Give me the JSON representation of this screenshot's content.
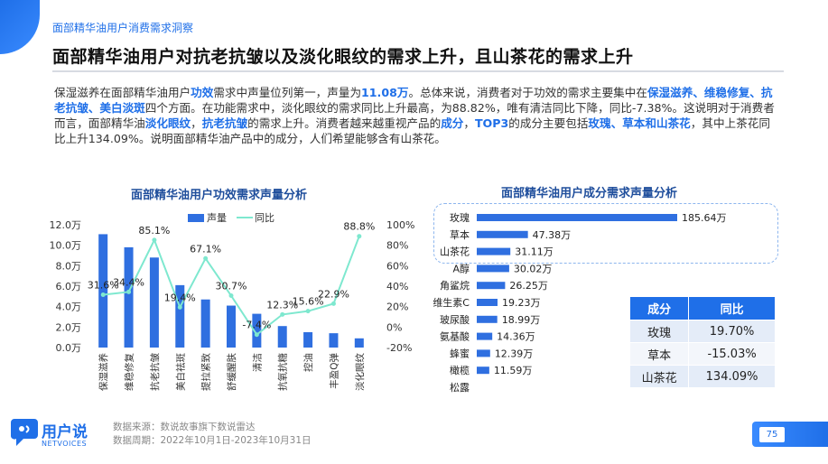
{
  "section_label": "面部精华油用户消费需求洞察",
  "headline": "面部精华油用户对抗老抗皱以及淡化眼纹的需求上升，且山茶花的需求上升",
  "summary": [
    {
      "t": "保湿滋养在面部精华油用户",
      "h": false
    },
    {
      "t": "功效",
      "h": true
    },
    {
      "t": "需求中声量位列第一，声量为",
      "h": false
    },
    {
      "t": "11.08万",
      "h": true
    },
    {
      "t": "。总体来说，消费者对于功效的需求主要集中在",
      "h": false
    },
    {
      "t": "保湿滋养、维稳修复、抗老抗皱、美白淡斑",
      "h": true
    },
    {
      "t": "四个方面。在功能需求中，淡化眼纹的需求同比上升最高，为88.82%，唯有清洁同比下降，同比-7.38%。这说明对于消费者而言，面部精华油",
      "h": false
    },
    {
      "t": "淡化眼纹",
      "h": true
    },
    {
      "t": "，",
      "h": false
    },
    {
      "t": "抗老抗皱",
      "h": true
    },
    {
      "t": "的需求上升。消费者越来越重视产品的",
      "h": false
    },
    {
      "t": "成分",
      "h": true
    },
    {
      "t": "，",
      "h": false
    },
    {
      "t": "TOP3",
      "h": true
    },
    {
      "t": "的成分主要包括",
      "h": false
    },
    {
      "t": "玫瑰、草本和山茶花",
      "h": true
    },
    {
      "t": "，其中上茶花同比上升134.09%。说明面部精华油产品中的成分，人们希望能够含有山茶花。",
      "h": false
    }
  ],
  "left_chart_title": "面部精华油用户功效需求声量分析",
  "right_chart_title": "面部精华油用户成分需求声量分析",
  "chart_data": [
    {
      "type": "bar",
      "title": "面部精华油用户功效需求声量分析",
      "legend": [
        "声量",
        "同比"
      ],
      "categories": [
        "保湿滋养",
        "维稳修复",
        "抗老抗皱",
        "美白祛斑",
        "提拉紧致",
        "舒缓醒肤",
        "清洁",
        "抗氧抗糖",
        "控油",
        "丰盈Q弹",
        "淡化眼纹"
      ],
      "series": [
        {
          "name": "声量",
          "kind": "bar",
          "values": [
            11.08,
            9.8,
            8.8,
            6.1,
            4.7,
            4.1,
            3.3,
            2.1,
            1.5,
            1.4,
            0.9
          ]
        },
        {
          "name": "同比",
          "kind": "line",
          "values": [
            31.6,
            34.4,
            85.1,
            19.4,
            67.1,
            30.7,
            -7.4,
            12.3,
            15.6,
            22.9,
            88.8
          ]
        }
      ],
      "point_labels": [
        "31.6%",
        "34.4%",
        "85.1%",
        "19.4%",
        "67.1%",
        "30.7%",
        "-7.4%",
        "12.3%",
        "15.6%",
        "22.9%",
        "88.8%"
      ],
      "y_left": {
        "ticks": [
          "0.0万",
          "2.0万",
          "4.0万",
          "6.0万",
          "8.0万",
          "10.0万",
          "12.0万"
        ],
        "range": [
          0,
          12
        ]
      },
      "y_right": {
        "ticks": [
          "-20%",
          "0%",
          "20%",
          "40%",
          "60%",
          "80%",
          "100%"
        ],
        "range": [
          -20,
          100
        ]
      },
      "colors": {
        "bar": "#2f6fe0",
        "line": "#7ee8cf"
      }
    },
    {
      "type": "bar",
      "orientation": "horizontal",
      "title": "面部精华油用户成分需求声量分析",
      "categories": [
        "玫瑰",
        "草本",
        "山茶花",
        "A醇",
        "角鲨烷",
        "维生素C",
        "玻尿酸",
        "氨基酸",
        "蜂蜜",
        "橄榄",
        "松露"
      ],
      "values": [
        185.64,
        47.38,
        31.11,
        30.02,
        26.25,
        19.23,
        18.99,
        14.36,
        12.39,
        11.59,
        0
      ],
      "value_labels": [
        "185.64万",
        "47.38万",
        "31.11万",
        "30.02万",
        "26.25万",
        "19.23万",
        "18.99万",
        "14.36万",
        "12.39万",
        "11.59万",
        ""
      ],
      "colors": {
        "bar": "#2f6fe0"
      }
    }
  ],
  "table": {
    "headers": [
      "成分",
      "同比"
    ],
    "rows": [
      [
        "玫瑰",
        "19.70%"
      ],
      [
        "草本",
        "-15.03%"
      ],
      [
        "山茶花",
        "134.09%"
      ]
    ]
  },
  "source": {
    "line1": "数据来源：数说故事旗下数说雷达",
    "line2": "数据周期：2022年10月1日-2023年10月31日"
  },
  "brand": {
    "name": "用户说",
    "sub": "NETVOICES"
  },
  "page_number": "75"
}
